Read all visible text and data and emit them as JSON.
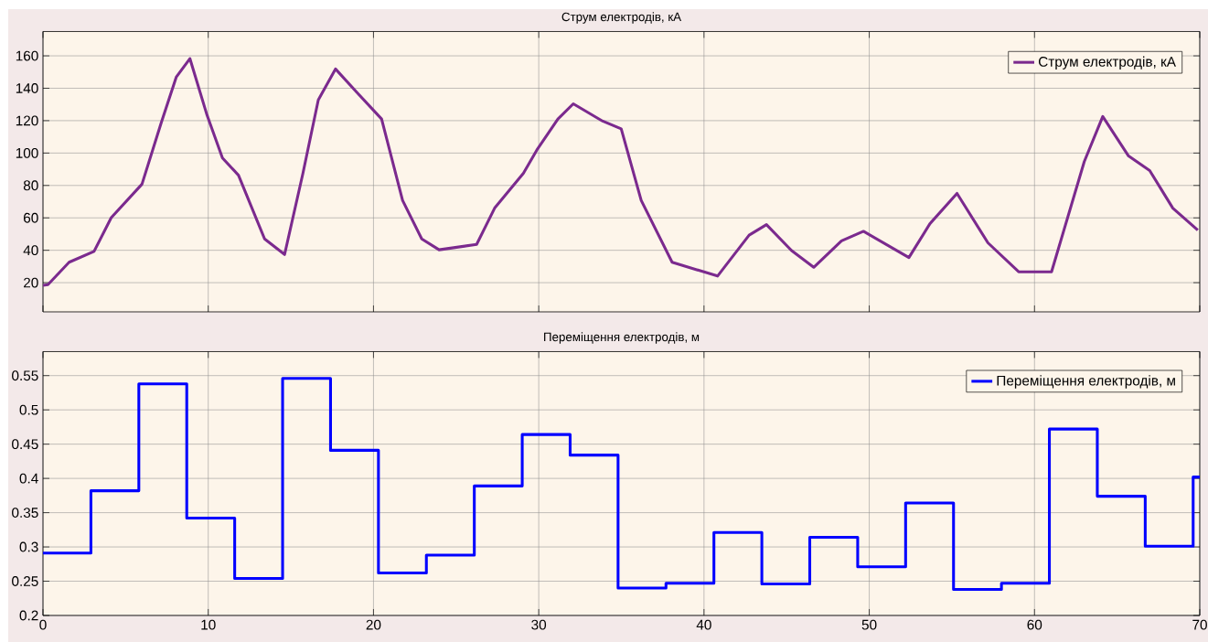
{
  "chart_data": [
    {
      "type": "line",
      "title": "Струм електродів, кА",
      "x": [
        0,
        0.3,
        1.58,
        3.09,
        4.13,
        5.99,
        7.15,
        8.07,
        8.89,
        9.93,
        10.86,
        11.83,
        13.41,
        14.62,
        15.73,
        16.66,
        17.7,
        18.98,
        20.49,
        21.76,
        22.92,
        23.97,
        26.24,
        27.33,
        29.07,
        29.88,
        31.16,
        32.09,
        33.87,
        34.99,
        36.2,
        38.07,
        40.82,
        42.73,
        43.78,
        45.3,
        46.64,
        48.32,
        49.65,
        52.4,
        53.68,
        55.31,
        57.18,
        59.04,
        61.03,
        63.01,
        64.13,
        65.69,
        66.97,
        68.37,
        69.88
      ],
      "series": [
        {
          "name": "Струм електродів, кА",
          "color": "#7b2a8e",
          "values": [
            18.3,
            18.8,
            32.6,
            39.3,
            60.1,
            80.8,
            118.5,
            147,
            158.3,
            123.3,
            97,
            86.3,
            47,
            37.4,
            87.5,
            132.8,
            151.9,
            137.6,
            121,
            70.8,
            47,
            40.3,
            43.6,
            66,
            87.5,
            101.8,
            121,
            130.4,
            119.7,
            114.9,
            70.8,
            32.6,
            24.1,
            49.3,
            55.8,
            39.8,
            29.5,
            45.8,
            51.7,
            35.5,
            56.5,
            75.1,
            44.6,
            26.7,
            26.7,
            94.7,
            122.6,
            98.2,
            89.2,
            66,
            52.4
          ]
        }
      ],
      "xlim": [
        0,
        70
      ],
      "xticks": [
        0,
        10,
        20,
        30,
        40,
        50,
        60,
        70
      ],
      "ylim": [
        2,
        175
      ],
      "yticks": [
        20,
        40,
        60,
        80,
        100,
        120,
        140,
        160
      ],
      "grid": true,
      "legend": "top right",
      "tick_labels": "y"
    },
    {
      "type": "step",
      "title": "Переміщення електродів, м",
      "x": [
        0,
        2.9,
        5.8,
        8.7,
        11.6,
        14.5,
        17.4,
        20.3,
        23.2,
        26.1,
        29,
        31.9,
        34.8,
        37.7,
        40.6,
        43.5,
        46.4,
        49.3,
        52.2,
        55.1,
        58,
        60.9,
        63.8,
        66.7,
        69.6,
        70
      ],
      "series": [
        {
          "name": "Переміщення електродів, м",
          "color": "#0000ff",
          "values": [
            0.291,
            0.382,
            0.538,
            0.342,
            0.254,
            0.546,
            0.441,
            0.262,
            0.288,
            0.389,
            0.464,
            0.434,
            0.24,
            0.247,
            0.321,
            0.246,
            0.314,
            0.271,
            0.364,
            0.238,
            0.247,
            0.472,
            0.374,
            0.301,
            0.402,
            0.402
          ]
        }
      ],
      "xlim": [
        0,
        70
      ],
      "xticks": [
        0,
        10,
        20,
        30,
        40,
        50,
        60,
        70
      ],
      "ylim": [
        0.2,
        0.585
      ],
      "yticks": [
        0.2,
        0.25,
        0.3,
        0.35,
        0.4,
        0.45,
        0.5,
        0.55
      ],
      "grid": true,
      "legend": "top right"
    }
  ]
}
